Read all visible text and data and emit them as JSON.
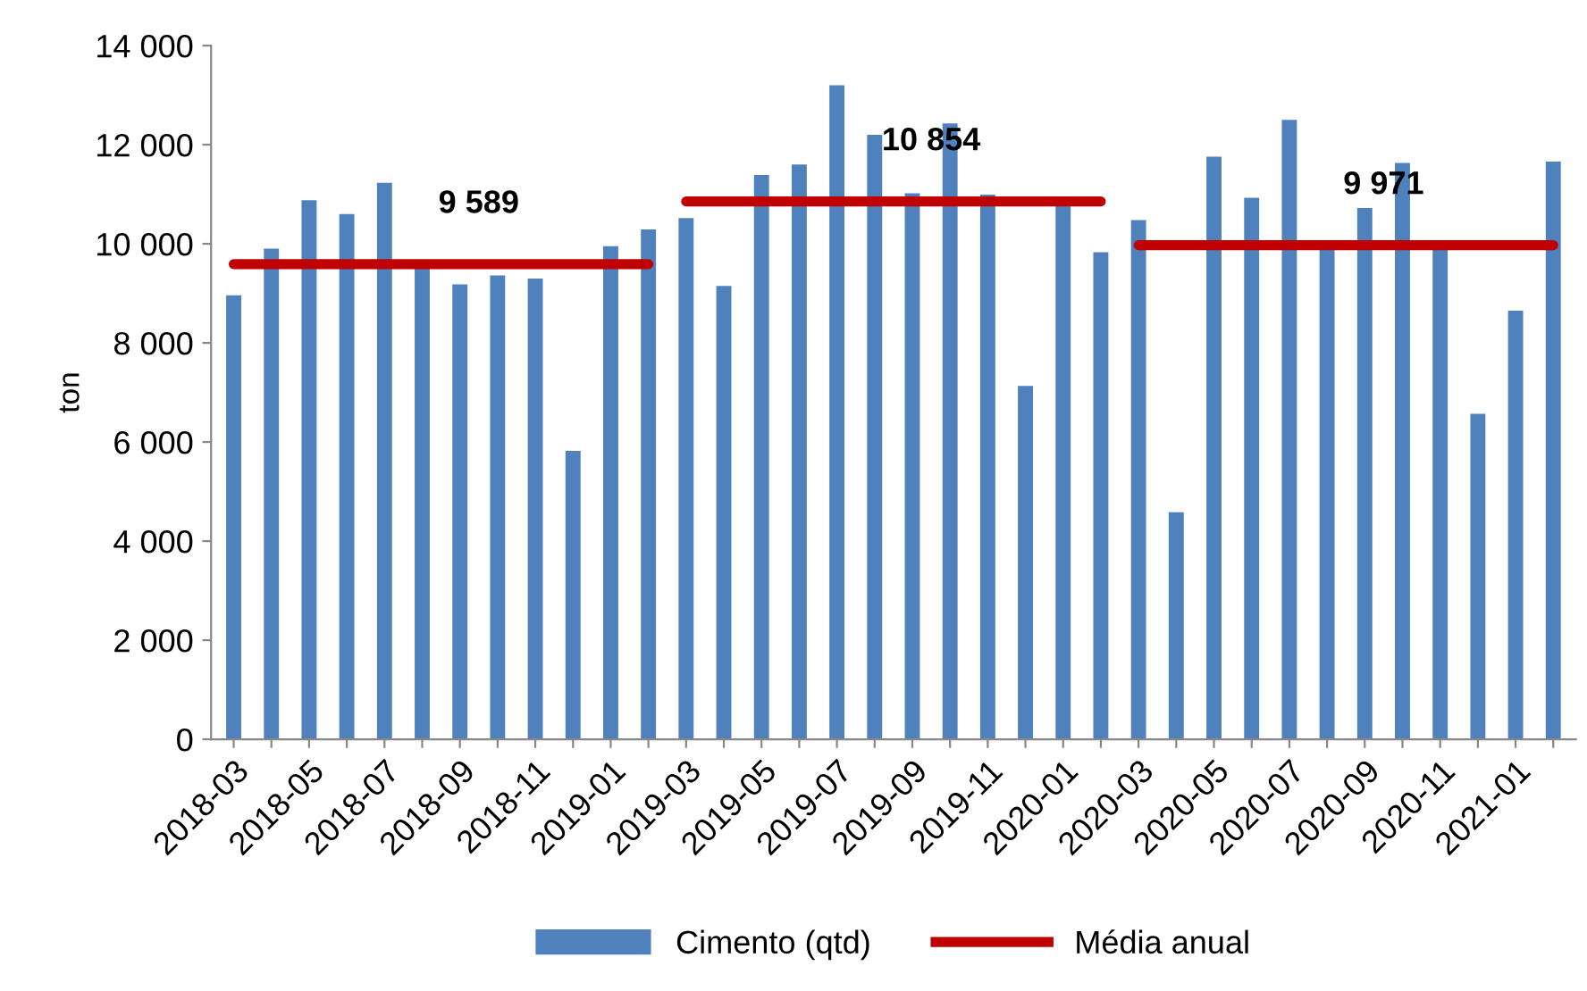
{
  "chart_data": {
    "type": "bar",
    "ylabel": "ton",
    "categories": [
      "2018-03",
      null,
      "2018-05",
      null,
      "2018-07",
      null,
      "2018-09",
      null,
      "2018-11",
      null,
      "2019-01",
      null,
      "2019-03",
      null,
      "2019-05",
      null,
      "2019-07",
      null,
      "2019-09",
      null,
      "2019-11",
      null,
      "2020-01",
      null,
      "2020-03",
      null,
      "2020-05",
      null,
      "2020-07",
      null,
      "2020-09",
      null,
      "2020-11",
      null,
      "2021-01",
      null
    ],
    "series": [
      {
        "name": "Cimento (qtd)",
        "color": "#4f81bd",
        "values": [
          8960,
          9900,
          10880,
          10600,
          11230,
          9550,
          9180,
          9360,
          9300,
          5820,
          9950,
          10290,
          10520,
          9150,
          11390,
          11600,
          13200,
          12200,
          11020,
          12430,
          10990,
          7130,
          10800,
          9830,
          10480,
          4580,
          11760,
          10930,
          12500,
          9950,
          10720,
          11630,
          9880,
          6570,
          8650,
          11660
        ]
      },
      {
        "name": "Média anual",
        "type": "line",
        "color": "#c00000",
        "values": [
          9589,
          9589,
          9589,
          9589,
          9589,
          9589,
          9589,
          9589,
          9589,
          9589,
          9589,
          9589,
          10854,
          10854,
          10854,
          10854,
          10854,
          10854,
          10854,
          10854,
          10854,
          10854,
          10854,
          10854,
          9971,
          9971,
          9971,
          9971,
          9971,
          9971,
          9971,
          9971,
          9971,
          9971,
          9971,
          9971
        ]
      }
    ],
    "annotations": [
      {
        "text": "9 589",
        "x": "2018-09",
        "y": 9589
      },
      {
        "text": "10 854",
        "x": "2019-09",
        "y": 10854
      },
      {
        "text": "9 971",
        "x": "2020-09",
        "y": 9971
      }
    ],
    "ylim": [
      0,
      14000
    ],
    "yticks": [
      0,
      {
        "value": 2000,
        "label": "2 000"
      },
      {
        "value": 4000,
        "label": "4 000"
      },
      {
        "value": 6000,
        "label": "6 000"
      },
      {
        "value": 8000,
        "label": "8 000"
      },
      {
        "value": 10000,
        "label": "10 000"
      },
      {
        "value": 12000,
        "label": "12 000"
      },
      {
        "value": 14000,
        "label": "14 000"
      }
    ],
    "grid": false,
    "legend": "bottom"
  }
}
